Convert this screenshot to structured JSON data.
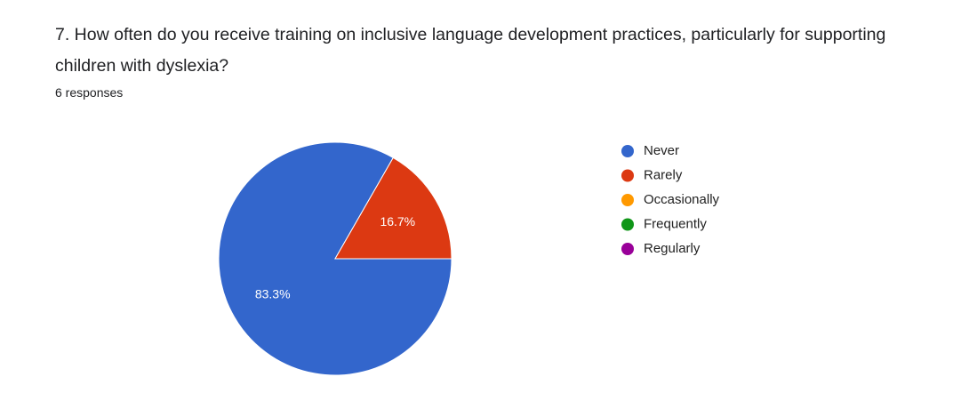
{
  "chart_data": {
    "type": "pie",
    "title": "7.  How often do you receive training on inclusive language development practices, particularly for supporting children with dyslexia?",
    "subtitle": "6 responses",
    "categories": [
      "Never",
      "Rarely",
      "Occasionally",
      "Frequently",
      "Regularly"
    ],
    "values": [
      83.3,
      16.7,
      0,
      0,
      0
    ],
    "value_labels": [
      "83.3%",
      "16.7%",
      null,
      null,
      null
    ],
    "colors": [
      "#3366cc",
      "#dc3912",
      "#ff9900",
      "#109618",
      "#990099"
    ],
    "legend": "right"
  }
}
